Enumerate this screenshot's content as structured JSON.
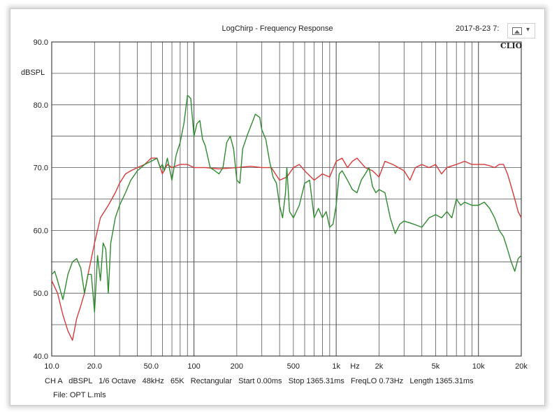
{
  "header": {
    "title": "LogChirp - Frequency Response",
    "timestamp": "2017-8-23 7:",
    "logo": "CLIO"
  },
  "footer": {
    "info_line": "CH A   dBSPL   1/6 Octave   48kHz   65K   Rectangular   Start 0.00ms   Stop 1365.31ms   FreqLO 0.73Hz   Length 1365.31ms",
    "file_line": "File: OPT L.mls"
  },
  "image_widget": {
    "icon": "image-icon",
    "dropdown_icon": "chevron-down-icon"
  },
  "chart_data": {
    "type": "line",
    "title": "LogChirp - Frequency Response",
    "xscale": "log",
    "xlim": [
      10,
      20000
    ],
    "ylim": [
      40,
      90
    ],
    "ylabel": "dBSPL",
    "xlabel": "Hz",
    "grid": true,
    "x_tick_labels": [
      {
        "x": 10,
        "label": "10.0"
      },
      {
        "x": 20,
        "label": "20.0"
      },
      {
        "x": 50,
        "label": "50.0"
      },
      {
        "x": 100,
        "label": "100"
      },
      {
        "x": 200,
        "label": "200"
      },
      {
        "x": 500,
        "label": "500"
      },
      {
        "x": 1000,
        "label": "1k"
      },
      {
        "x": 2000,
        "label": "2k"
      },
      {
        "x": 5000,
        "label": "5k"
      },
      {
        "x": 10000,
        "label": "10k"
      },
      {
        "x": 20000,
        "label": "20k"
      }
    ],
    "y_tick_labels": [
      {
        "y": 90,
        "label": "90.0"
      },
      {
        "y": 80,
        "label": "80.0"
      },
      {
        "y": 70,
        "label": "70.0"
      },
      {
        "y": 60,
        "label": "60.0"
      },
      {
        "y": 50,
        "label": "50.0"
      },
      {
        "y": 40,
        "label": "40.0"
      }
    ],
    "series": [
      {
        "color": "#d63a3a",
        "points": [
          [
            10,
            52
          ],
          [
            11,
            50
          ],
          [
            12,
            46.5
          ],
          [
            13,
            44
          ],
          [
            14,
            42.5
          ],
          [
            15,
            46
          ],
          [
            16,
            48
          ],
          [
            17,
            50
          ],
          [
            18,
            53
          ],
          [
            20,
            58
          ],
          [
            22,
            62
          ],
          [
            25,
            64
          ],
          [
            28,
            66
          ],
          [
            30,
            67.5
          ],
          [
            33,
            69
          ],
          [
            36,
            69.5
          ],
          [
            40,
            70
          ],
          [
            45,
            70.5
          ],
          [
            50,
            71.5
          ],
          [
            55,
            71.5
          ],
          [
            60,
            69
          ],
          [
            65,
            70.5
          ],
          [
            70,
            70
          ],
          [
            80,
            70.5
          ],
          [
            90,
            70.5
          ],
          [
            100,
            70
          ],
          [
            120,
            70
          ],
          [
            150,
            69.8
          ],
          [
            200,
            70
          ],
          [
            250,
            70.2
          ],
          [
            300,
            70
          ],
          [
            350,
            70
          ],
          [
            400,
            68
          ],
          [
            450,
            68.5
          ],
          [
            500,
            70
          ],
          [
            550,
            70.5
          ],
          [
            600,
            69.5
          ],
          [
            700,
            68
          ],
          [
            800,
            69
          ],
          [
            900,
            68.5
          ],
          [
            1000,
            71
          ],
          [
            1100,
            71.5
          ],
          [
            1200,
            70
          ],
          [
            1300,
            71
          ],
          [
            1400,
            71.5
          ],
          [
            1600,
            70
          ],
          [
            1800,
            69.5
          ],
          [
            2000,
            68.5
          ],
          [
            2200,
            71
          ],
          [
            2500,
            70.5
          ],
          [
            3000,
            69.5
          ],
          [
            3300,
            68
          ],
          [
            3600,
            70
          ],
          [
            4000,
            70.5
          ],
          [
            4500,
            70
          ],
          [
            5000,
            70.5
          ],
          [
            5500,
            69
          ],
          [
            6000,
            70
          ],
          [
            7000,
            70.5
          ],
          [
            8000,
            71
          ],
          [
            9000,
            70.5
          ],
          [
            10000,
            70.5
          ],
          [
            11000,
            70.5
          ],
          [
            12000,
            70.3
          ],
          [
            13000,
            70
          ],
          [
            14000,
            70.5
          ],
          [
            15000,
            70.5
          ],
          [
            16000,
            69
          ],
          [
            17000,
            67
          ],
          [
            18000,
            65
          ],
          [
            19000,
            63
          ],
          [
            20000,
            62
          ]
        ]
      },
      {
        "color": "#2f8a2f",
        "points": [
          [
            10,
            53
          ],
          [
            10.5,
            53.5
          ],
          [
            11,
            52
          ],
          [
            12,
            49
          ],
          [
            13,
            53
          ],
          [
            14,
            55
          ],
          [
            15,
            55.5
          ],
          [
            16,
            54
          ],
          [
            17,
            50
          ],
          [
            18,
            53
          ],
          [
            19,
            53
          ],
          [
            20,
            47
          ],
          [
            21,
            56
          ],
          [
            22,
            52
          ],
          [
            23,
            58
          ],
          [
            24,
            57
          ],
          [
            25,
            50
          ],
          [
            26,
            58
          ],
          [
            28,
            62
          ],
          [
            30,
            64
          ],
          [
            33,
            66
          ],
          [
            36,
            68
          ],
          [
            40,
            69.5
          ],
          [
            45,
            70.5
          ],
          [
            50,
            71
          ],
          [
            55,
            71.5
          ],
          [
            58,
            70
          ],
          [
            60,
            70.5
          ],
          [
            62,
            69.5
          ],
          [
            65,
            71.5
          ],
          [
            70,
            68
          ],
          [
            75,
            72
          ],
          [
            80,
            74
          ],
          [
            85,
            77
          ],
          [
            90,
            81.5
          ],
          [
            95,
            81
          ],
          [
            100,
            75
          ],
          [
            105,
            77
          ],
          [
            110,
            77.5
          ],
          [
            115,
            74.5
          ],
          [
            120,
            73.5
          ],
          [
            130,
            70
          ],
          [
            140,
            69.5
          ],
          [
            150,
            69
          ],
          [
            160,
            70
          ],
          [
            170,
            74
          ],
          [
            180,
            75
          ],
          [
            190,
            73
          ],
          [
            200,
            68
          ],
          [
            210,
            67.5
          ],
          [
            220,
            73
          ],
          [
            240,
            75.5
          ],
          [
            260,
            77.5
          ],
          [
            270,
            78.5
          ],
          [
            290,
            78
          ],
          [
            300,
            76
          ],
          [
            320,
            74.5
          ],
          [
            340,
            71
          ],
          [
            360,
            68.5
          ],
          [
            380,
            67.5
          ],
          [
            400,
            64
          ],
          [
            420,
            62
          ],
          [
            440,
            66
          ],
          [
            450,
            70
          ],
          [
            470,
            63
          ],
          [
            500,
            62
          ],
          [
            550,
            64
          ],
          [
            600,
            67.5
          ],
          [
            650,
            68
          ],
          [
            700,
            62
          ],
          [
            750,
            63.5
          ],
          [
            800,
            62
          ],
          [
            850,
            63
          ],
          [
            900,
            60.5
          ],
          [
            950,
            61
          ],
          [
            1000,
            64
          ],
          [
            1050,
            69
          ],
          [
            1100,
            69.5
          ],
          [
            1200,
            68
          ],
          [
            1300,
            66.5
          ],
          [
            1400,
            66
          ],
          [
            1500,
            68
          ],
          [
            1600,
            69
          ],
          [
            1700,
            70
          ],
          [
            1800,
            67
          ],
          [
            1900,
            66
          ],
          [
            2000,
            66.5
          ],
          [
            2200,
            66
          ],
          [
            2400,
            62
          ],
          [
            2600,
            59.5
          ],
          [
            2800,
            61
          ],
          [
            3000,
            61.5
          ],
          [
            3500,
            61
          ],
          [
            4000,
            60.5
          ],
          [
            4500,
            62
          ],
          [
            5000,
            62.5
          ],
          [
            5500,
            62
          ],
          [
            6000,
            63
          ],
          [
            6500,
            62
          ],
          [
            7000,
            65
          ],
          [
            7500,
            64
          ],
          [
            8000,
            64.5
          ],
          [
            9000,
            64
          ],
          [
            10000,
            64
          ],
          [
            11000,
            64.5
          ],
          [
            12000,
            63.5
          ],
          [
            13000,
            62
          ],
          [
            14000,
            60
          ],
          [
            15000,
            59
          ],
          [
            16000,
            57
          ],
          [
            17000,
            55
          ],
          [
            18000,
            53.5
          ],
          [
            19000,
            55.5
          ],
          [
            20000,
            56
          ]
        ]
      }
    ]
  }
}
